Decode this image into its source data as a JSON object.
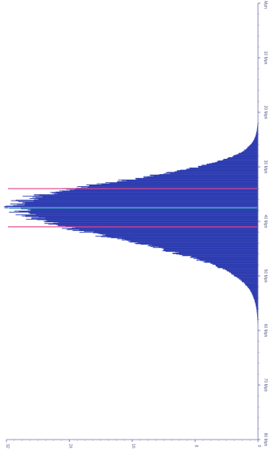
{
  "chart_data": {
    "type": "histogram",
    "orientation": "rotated-90-clockwise",
    "title": "",
    "xlabel": "",
    "ylabel": "",
    "x_unit": "Mph",
    "x_ticks": [
      {
        "value": 0,
        "label": "0 Mph"
      },
      {
        "value": 10,
        "label": "10 Mph"
      },
      {
        "value": 20,
        "label": "20 Mph"
      },
      {
        "value": 30,
        "label": "30 Mph"
      },
      {
        "value": 40,
        "label": "40 Mph"
      },
      {
        "value": 50,
        "label": "50 Mph"
      },
      {
        "value": 60,
        "label": "60 Mph"
      },
      {
        "value": 70,
        "label": "70 Mph"
      },
      {
        "value": 80,
        "label": "80 Mph"
      }
    ],
    "y_ticks": [
      {
        "value": 0,
        "label": "0"
      },
      {
        "value": 8,
        "label": "8"
      },
      {
        "value": 16,
        "label": "16"
      },
      {
        "value": 24,
        "label": "24"
      },
      {
        "value": 32,
        "label": "32"
      }
    ],
    "xlim": [
      0,
      80
    ],
    "ylim": [
      0,
      32
    ],
    "distribution": {
      "peak_x": 37,
      "peak_y": 31,
      "sigma_left": 4.2,
      "sigma_right": 6.0,
      "bin_width": 0.1,
      "x_range": [
        12,
        75
      ]
    },
    "reference_lines": [
      {
        "name": "lower",
        "x": 34,
        "color": "#e0408a"
      },
      {
        "name": "center",
        "x": 37.5,
        "color": "#40c8c8"
      },
      {
        "name": "upper",
        "x": 41,
        "color": "#e0408a"
      }
    ],
    "bar_color": "#2b3bb0",
    "axis_color": "#7070b0"
  }
}
